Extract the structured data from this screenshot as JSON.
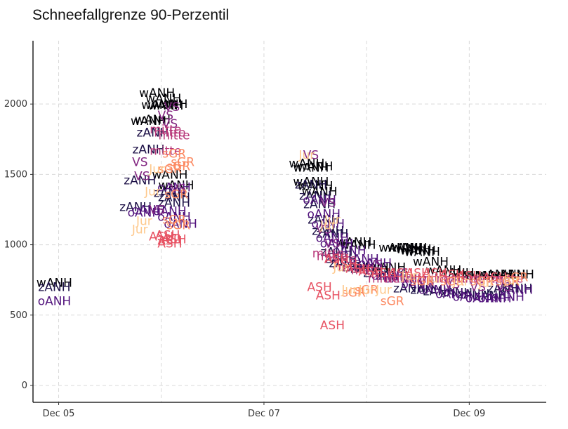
{
  "chart_data": {
    "type": "scatter",
    "title": "Schneefallgrenze 90-Perzentil",
    "xlabel": "",
    "ylabel": "",
    "grid": true,
    "legend": "none",
    "x_ticks": [
      {
        "label": "Dec 05",
        "value": "2021-12-05"
      },
      {
        "label": "Dec 07",
        "value": "2021-12-07"
      },
      {
        "label": "Dec 09",
        "value": "2021-12-09"
      }
    ],
    "xlim": [
      "2021-12-04T18:00",
      "2021-12-09T18:00"
    ],
    "y_ticks": [
      0,
      500,
      1000,
      1500,
      2000
    ],
    "ylim": [
      -120,
      2450
    ],
    "palette": {
      "wANH": "#000004",
      "zANH": "#1d1147",
      "oANH": "#51127c",
      "VS": "#822681",
      "mitte": "#b73779",
      "ASH": "#e75263",
      "sGR": "#fc8961",
      "Jur": "#fec98d"
    },
    "series": [
      {
        "name": "wANH",
        "points": [
          [
            "2021-12-04T23:00",
            730
          ],
          [
            "2021-12-05T23:00",
            2080
          ],
          [
            "2021-12-05T23:30",
            1995
          ],
          [
            "2021-12-06T00:30",
            2040
          ],
          [
            "2021-12-06T01:00",
            1990
          ],
          [
            "2021-12-06T02:00",
            2000
          ],
          [
            "2021-12-05T21:00",
            1880
          ],
          [
            "2021-12-05T22:00",
            1890
          ],
          [
            "2021-12-06T02:00",
            1500
          ],
          [
            "2021-12-06T03:30",
            1425
          ],
          [
            "2021-12-07T10:00",
            1580
          ],
          [
            "2021-12-07T11:00",
            1550
          ],
          [
            "2021-12-07T12:00",
            1560
          ],
          [
            "2021-12-07T11:00",
            1450
          ],
          [
            "2021-12-07T12:00",
            1420
          ],
          [
            "2021-12-07T13:00",
            1380
          ],
          [
            "2021-12-08T09:00",
            980
          ],
          [
            "2021-12-08T10:00",
            980
          ],
          [
            "2021-12-08T11:00",
            970
          ],
          [
            "2021-12-08T12:00",
            960
          ],
          [
            "2021-12-08T13:00",
            950
          ],
          [
            "2021-12-08T15:00",
            880
          ],
          [
            "2021-12-08T18:00",
            820
          ],
          [
            "2021-12-08T21:00",
            800
          ],
          [
            "2021-12-09T00:00",
            780
          ],
          [
            "2021-12-09T03:00",
            780
          ],
          [
            "2021-12-09T06:00",
            790
          ],
          [
            "2021-12-09T09:00",
            790
          ],
          [
            "2021-12-09T11:00",
            790
          ],
          [
            "2021-12-08T07:00",
            980
          ],
          [
            "2021-12-08T01:00",
            840
          ],
          [
            "2021-12-08T05:00",
            840
          ],
          [
            "2021-12-07T22:00",
            1000
          ],
          [
            "2021-12-07T21:00",
            1020
          ]
        ]
      },
      {
        "name": "zANH",
        "points": [
          [
            "2021-12-04T23:00",
            700
          ],
          [
            "2021-12-05T22:00",
            1800
          ],
          [
            "2021-12-05T21:00",
            1680
          ],
          [
            "2021-12-05T19:00",
            1460
          ],
          [
            "2021-12-05T18:00",
            1270
          ],
          [
            "2021-12-06T02:00",
            1370
          ],
          [
            "2021-12-06T03:00",
            1340
          ],
          [
            "2021-12-06T03:00",
            1300
          ],
          [
            "2021-12-07T11:00",
            1430
          ],
          [
            "2021-12-07T12:00",
            1350
          ],
          [
            "2021-12-07T13:00",
            1290
          ],
          [
            "2021-12-07T14:00",
            1180
          ],
          [
            "2021-12-07T15:00",
            1100
          ],
          [
            "2021-12-07T16:00",
            1080
          ],
          [
            "2021-12-07T18:00",
            900
          ],
          [
            "2021-12-07T19:00",
            870
          ],
          [
            "2021-12-08T03:00",
            800
          ],
          [
            "2021-12-08T06:00",
            780
          ],
          [
            "2021-12-08T10:00",
            690
          ],
          [
            "2021-12-08T14:00",
            680
          ],
          [
            "2021-12-08T17:00",
            670
          ],
          [
            "2021-12-08T21:00",
            660
          ],
          [
            "2021-12-09T01:00",
            650
          ],
          [
            "2021-12-09T05:00",
            640
          ],
          [
            "2021-12-09T08:00",
            690
          ],
          [
            "2021-12-09T11:00",
            690
          ],
          [
            "2021-12-07T17:00",
            950
          ],
          [
            "2021-12-08T00:00",
            830
          ],
          [
            "2021-12-07T22:00",
            840
          ]
        ]
      },
      {
        "name": "oANH",
        "points": [
          [
            "2021-12-04T23:00",
            600
          ],
          [
            "2021-12-05T21:00",
            1250
          ],
          [
            "2021-12-05T20:00",
            1230
          ],
          [
            "2021-12-06T02:00",
            1240
          ],
          [
            "2021-12-06T03:00",
            1200
          ],
          [
            "2021-12-06T04:30",
            1150
          ],
          [
            "2021-12-06T03:00",
            1410
          ],
          [
            "2021-12-07T13:00",
            1320
          ],
          [
            "2021-12-07T14:00",
            1220
          ],
          [
            "2021-12-07T15:00",
            1150
          ],
          [
            "2021-12-07T16:00",
            1050
          ],
          [
            "2021-12-07T17:00",
            1010
          ],
          [
            "2021-12-07T20:00",
            960
          ],
          [
            "2021-12-07T23:00",
            900
          ],
          [
            "2021-12-08T02:00",
            870
          ],
          [
            "2021-12-08T05:00",
            780
          ],
          [
            "2021-12-08T08:00",
            760
          ],
          [
            "2021-12-08T12:00",
            720
          ],
          [
            "2021-12-08T16:00",
            680
          ],
          [
            "2021-12-08T20:00",
            650
          ],
          [
            "2021-12-09T00:00",
            630
          ],
          [
            "2021-12-09T03:00",
            620
          ],
          [
            "2021-12-09T06:00",
            620
          ],
          [
            "2021-12-09T09:00",
            630
          ],
          [
            "2021-12-09T11:00",
            680
          ]
        ]
      },
      {
        "name": "VS",
        "points": [
          [
            "2021-12-05T19:00",
            1590
          ],
          [
            "2021-12-05T19:30",
            1490
          ],
          [
            "2021-12-05T23:00",
            1250
          ],
          [
            "2021-12-06T01:00",
            1920
          ],
          [
            "2021-12-06T02:30",
            1980
          ],
          [
            "2021-12-06T02:00",
            1860
          ],
          [
            "2021-12-07T11:00",
            1640
          ],
          [
            "2021-12-07T14:00",
            1110
          ],
          [
            "2021-12-07T16:00",
            1010
          ],
          [
            "2021-12-08T02:00",
            860
          ],
          [
            "2021-12-08T08:00",
            800
          ],
          [
            "2021-12-08T14:00",
            740
          ],
          [
            "2021-12-08T20:00",
            720
          ],
          [
            "2021-12-09T02:00",
            700
          ],
          [
            "2021-12-09T08:00",
            700
          ],
          [
            "2021-12-07T15:00",
            1300
          ],
          [
            "2021-12-06T04:00",
            1400
          ]
        ]
      },
      {
        "name": "mitte",
        "points": [
          [
            "2021-12-06T01:00",
            1820
          ],
          [
            "2021-12-06T02:00",
            1800
          ],
          [
            "2021-12-06T03:00",
            1780
          ],
          [
            "2021-12-06T01:00",
            1670
          ],
          [
            "2021-12-07T15:00",
            940
          ],
          [
            "2021-12-07T16:00",
            920
          ],
          [
            "2021-12-07T18:00",
            900
          ],
          [
            "2021-12-07T21:00",
            840
          ],
          [
            "2021-12-08T00:00",
            820
          ],
          [
            "2021-12-08T04:00",
            760
          ],
          [
            "2021-12-08T08:00",
            760
          ],
          [
            "2021-12-08T12:00",
            760
          ],
          [
            "2021-12-08T16:00",
            760
          ],
          [
            "2021-12-08T20:00",
            760
          ],
          [
            "2021-12-09T00:00",
            760
          ],
          [
            "2021-12-09T04:00",
            760
          ],
          [
            "2021-12-09T09:00",
            760
          ]
        ]
      },
      {
        "name": "ASH",
        "points": [
          [
            "2021-12-06T00:00",
            1060
          ],
          [
            "2021-12-06T01:30",
            1070
          ],
          [
            "2021-12-06T02:00",
            1030
          ],
          [
            "2021-12-06T03:00",
            1040
          ],
          [
            "2021-12-06T02:00",
            1010
          ],
          [
            "2021-12-07T13:00",
            700
          ],
          [
            "2021-12-07T15:00",
            640
          ],
          [
            "2021-12-07T16:00",
            430
          ],
          [
            "2021-12-07T17:00",
            900
          ],
          [
            "2021-12-07T19:00",
            860
          ],
          [
            "2021-12-07T22:00",
            830
          ],
          [
            "2021-12-08T01:00",
            810
          ],
          [
            "2021-12-08T04:00",
            800
          ],
          [
            "2021-12-08T08:00",
            800
          ],
          [
            "2021-12-08T12:00",
            800
          ],
          [
            "2021-12-08T16:00",
            800
          ],
          [
            "2021-12-08T20:00",
            790
          ],
          [
            "2021-12-09T00:00",
            780
          ],
          [
            "2021-12-09T06:00",
            770
          ]
        ]
      },
      {
        "name": "sGR",
        "points": [
          [
            "2021-12-06T02:00",
            1540
          ],
          [
            "2021-12-06T04:00",
            1560
          ],
          [
            "2021-12-06T05:00",
            1590
          ],
          [
            "2021-12-06T03:00",
            1650
          ],
          [
            "2021-12-06T03:30",
            1360
          ],
          [
            "2021-12-06T03:00",
            1180
          ],
          [
            "2021-12-06T04:00",
            1140
          ],
          [
            "2021-12-07T21:00",
            660
          ],
          [
            "2021-12-08T00:00",
            680
          ],
          [
            "2021-12-08T06:00",
            600
          ],
          [
            "2021-12-08T13:00",
            740
          ],
          [
            "2021-12-08T20:00",
            740
          ],
          [
            "2021-12-09T03:00",
            740
          ],
          [
            "2021-12-09T09:00",
            740
          ],
          [
            "2021-12-09T11:00",
            770
          ]
        ]
      },
      {
        "name": "Jur",
        "points": [
          [
            "2021-12-05T19:00",
            1110
          ],
          [
            "2021-12-05T20:00",
            1170
          ],
          [
            "2021-12-05T22:00",
            1380
          ],
          [
            "2021-12-05T23:00",
            1540
          ],
          [
            "2021-12-07T10:00",
            1640
          ],
          [
            "2021-12-07T15:00",
            1140
          ],
          [
            "2021-12-07T16:00",
            1180
          ],
          [
            "2021-12-07T18:00",
            840
          ],
          [
            "2021-12-07T20:00",
            680
          ],
          [
            "2021-12-08T00:00",
            680
          ],
          [
            "2021-12-08T04:00",
            680
          ],
          [
            "2021-12-08T10:00",
            780
          ],
          [
            "2021-12-08T16:00",
            760
          ],
          [
            "2021-12-08T22:00",
            740
          ],
          [
            "2021-12-09T04:00",
            730
          ],
          [
            "2021-12-09T10:00",
            750
          ]
        ]
      }
    ]
  }
}
